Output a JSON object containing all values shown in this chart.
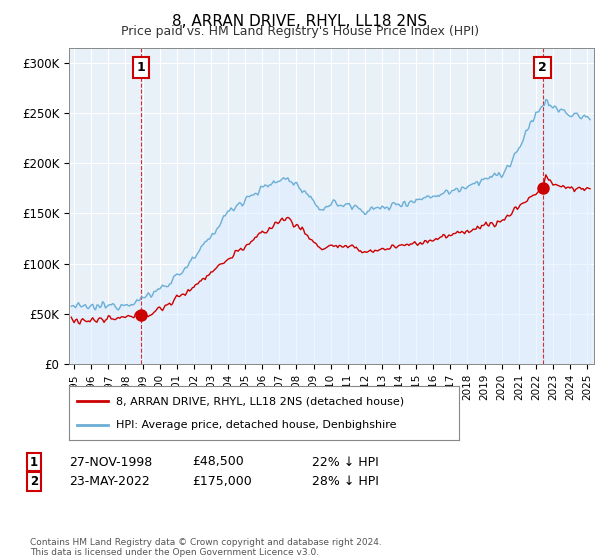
{
  "title": "8, ARRAN DRIVE, RHYL, LL18 2NS",
  "subtitle": "Price paid vs. HM Land Registry's House Price Index (HPI)",
  "ylabel_ticks": [
    "£0",
    "£50K",
    "£100K",
    "£150K",
    "£200K",
    "£250K",
    "£300K"
  ],
  "ytick_values": [
    0,
    50000,
    100000,
    150000,
    200000,
    250000,
    300000
  ],
  "ylim": [
    0,
    315000
  ],
  "xlim_start": 1994.7,
  "xlim_end": 2025.4,
  "hpi_color": "#6baed6",
  "hpi_fill_color": "#ddeeff",
  "price_color": "#cc0000",
  "marker1_date": 1998.91,
  "marker1_price": 48500,
  "marker1_label": "1",
  "marker2_date": 2022.39,
  "marker2_price": 175000,
  "marker2_label": "2",
  "legend_line1": "8, ARRAN DRIVE, RHYL, LL18 2NS (detached house)",
  "legend_line2": "HPI: Average price, detached house, Denbighshire",
  "footnote": "Contains HM Land Registry data © Crown copyright and database right 2024.\nThis data is licensed under the Open Government Licence v3.0.",
  "background_color": "#ffffff",
  "plot_bg_color": "#e8f0f8",
  "grid_color": "#ffffff"
}
